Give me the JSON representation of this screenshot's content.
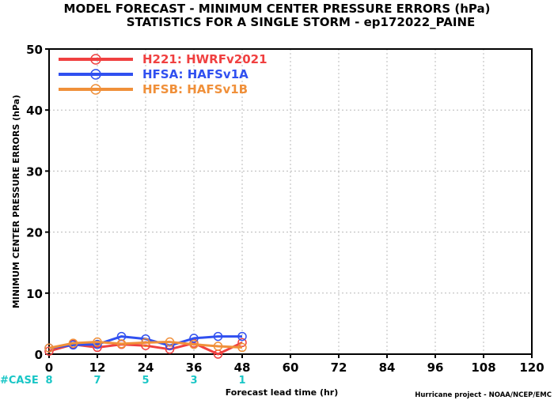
{
  "chart_data": {
    "type": "line",
    "title": "MODEL FORECAST - MINIMUM CENTER PRESSURE ERRORS (hPa)",
    "subtitle": "STATISTICS FOR A SINGLE STORM - ep172022_PAINE",
    "xlabel": "Forecast lead time (hr)",
    "ylabel": "MINIMUM CENTER PRESSURE ERRORS (hPa)",
    "xlim": [
      0,
      120
    ],
    "ylim": [
      0,
      50
    ],
    "x_ticks": [
      0,
      12,
      24,
      36,
      48,
      60,
      72,
      84,
      96,
      108,
      120
    ],
    "y_ticks": [
      0,
      10,
      20,
      30,
      40,
      50
    ],
    "grid": true,
    "legend_position": "top-left",
    "case_label": "#CASE",
    "cases": [
      {
        "x": 0,
        "n": "8"
      },
      {
        "x": 12,
        "n": "7"
      },
      {
        "x": 24,
        "n": "5"
      },
      {
        "x": 36,
        "n": "3"
      },
      {
        "x": 48,
        "n": "1"
      }
    ],
    "series": [
      {
        "name": "H221: HWRFv2021",
        "color": "#f04040",
        "x": [
          0,
          6,
          12,
          18,
          24,
          30,
          36,
          42,
          48
        ],
        "y": [
          0.5,
          1.6,
          1.1,
          1.6,
          1.4,
          0.8,
          1.8,
          0.0,
          1.9
        ]
      },
      {
        "name": "HFSA: HAFSv1A",
        "color": "#3050f0",
        "x": [
          0,
          6,
          12,
          18,
          24,
          30,
          36,
          42,
          48
        ],
        "y": [
          1.0,
          1.5,
          1.6,
          2.9,
          2.5,
          1.4,
          2.6,
          2.9,
          2.9
        ]
      },
      {
        "name": "HFSB: HAFSv1B",
        "color": "#f0903a",
        "x": [
          0,
          6,
          12,
          18,
          24,
          30,
          36,
          42,
          48
        ],
        "y": [
          1.0,
          1.8,
          2.0,
          1.7,
          1.9,
          2.0,
          1.6,
          1.3,
          1.1
        ]
      }
    ]
  },
  "footer": {
    "credit": "Hurricane project - NOAA/NCEP/EMC"
  }
}
